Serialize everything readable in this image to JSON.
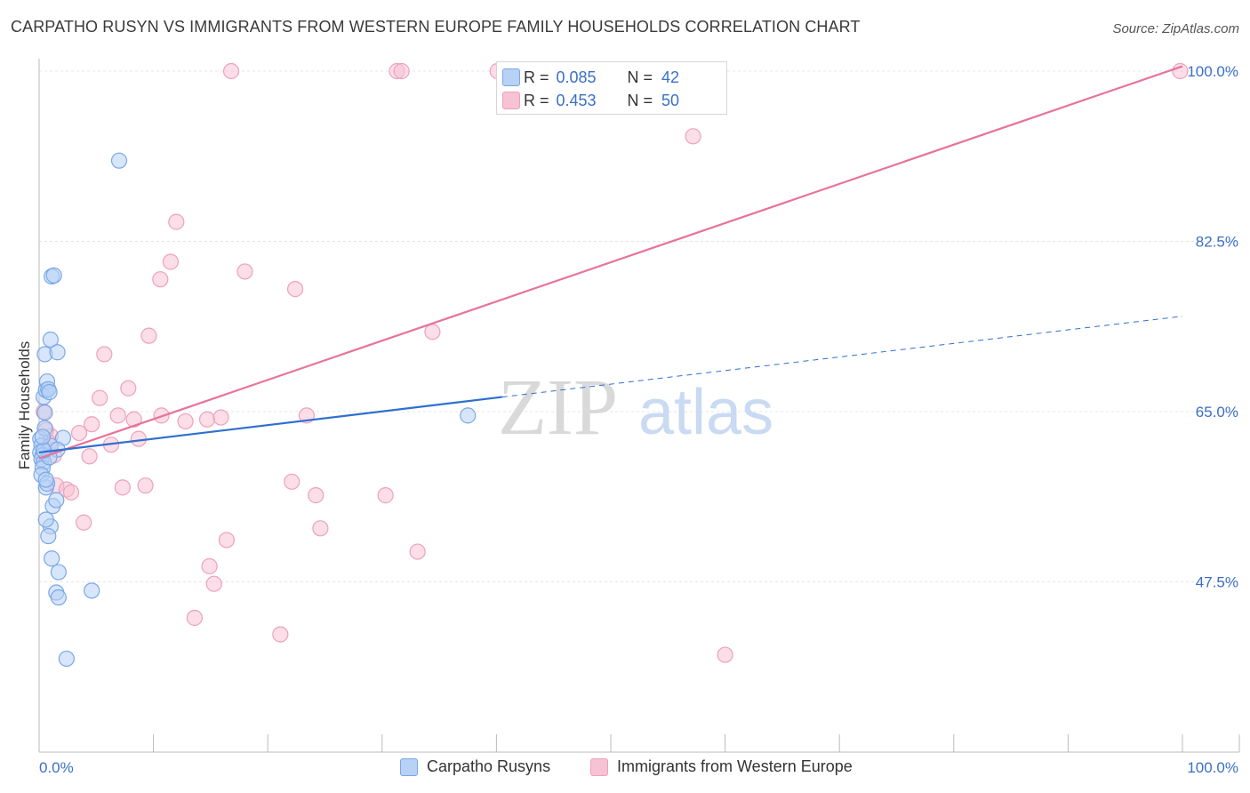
{
  "title": "CARPATHO RUSYN VS IMMIGRANTS FROM WESTERN EUROPE FAMILY HOUSEHOLDS CORRELATION CHART",
  "source": "Source: ZipAtlas.com",
  "colors": {
    "blue": "#4f8fe8",
    "blue_fill": "#b7d2f5",
    "pink": "#e8729a",
    "pink_fill": "#f7c2d3",
    "axis_text": "#3b6fc7"
  },
  "legend_top": {
    "rows": [
      {
        "r_label": "R =",
        "r_value": "0.085",
        "n_label": "N =",
        "n_value": "42"
      },
      {
        "r_label": "R =",
        "r_value": "0.453",
        "n_label": "N =",
        "n_value": "50"
      }
    ]
  },
  "legend_bottom": {
    "items": [
      "Carpatho Rusyns",
      "Immigrants from Western Europe"
    ]
  },
  "watermark": {
    "zip": "ZIP",
    "atlas": "atlas"
  },
  "chart_data": {
    "type": "scatter",
    "title": "CARPATHO RUSYN VS IMMIGRANTS FROM WESTERN EUROPE FAMILY HOUSEHOLDS CORRELATION CHART",
    "xlabel": "",
    "ylabel": "Family Households",
    "xlim": [
      0,
      100
    ],
    "ylim": [
      30,
      102
    ],
    "x_tick_labels": [
      "0.0%",
      "100.0%"
    ],
    "y_ticks": [
      47.5,
      65.0,
      82.5,
      100.0
    ],
    "y_tick_labels": [
      "47.5%",
      "65.0%",
      "82.5%",
      "100.0%"
    ],
    "series": [
      {
        "name": "Carpatho Rusyns",
        "r": 0.085,
        "n": 42,
        "trend": {
          "x0": 0,
          "y0": 60.8,
          "x1": 40.5,
          "y1": 66.5,
          "dash_x1": 100,
          "dash_y1": 74.8
        },
        "points": [
          [
            0.1,
            62.2
          ],
          [
            0.2,
            61.5
          ],
          [
            0.1,
            60.8
          ],
          [
            0.3,
            60.5
          ],
          [
            0.2,
            60.1
          ],
          [
            0.4,
            59.8
          ],
          [
            0.3,
            59.2
          ],
          [
            0.2,
            58.5
          ],
          [
            0.5,
            63.3
          ],
          [
            0.4,
            66.5
          ],
          [
            0.6,
            67.2
          ],
          [
            0.7,
            68.1
          ],
          [
            0.8,
            67.3
          ],
          [
            0.9,
            67.0
          ],
          [
            0.5,
            70.9
          ],
          [
            1.0,
            72.4
          ],
          [
            1.6,
            71.1
          ],
          [
            1.1,
            78.9
          ],
          [
            1.3,
            79.0
          ],
          [
            7.0,
            90.8
          ],
          [
            0.6,
            57.2
          ],
          [
            0.7,
            57.6
          ],
          [
            1.0,
            53.2
          ],
          [
            0.6,
            53.9
          ],
          [
            0.8,
            52.2
          ],
          [
            1.2,
            55.3
          ],
          [
            1.5,
            55.9
          ],
          [
            1.1,
            49.9
          ],
          [
            1.7,
            48.5
          ],
          [
            1.5,
            46.4
          ],
          [
            1.7,
            45.9
          ],
          [
            4.6,
            46.6
          ],
          [
            2.4,
            39.6
          ],
          [
            2.1,
            62.3
          ],
          [
            1.0,
            61.5
          ],
          [
            1.6,
            61.1
          ],
          [
            0.9,
            60.3
          ],
          [
            0.4,
            61.0
          ],
          [
            0.3,
            62.4
          ],
          [
            0.5,
            64.9
          ],
          [
            0.6,
            58.0
          ],
          [
            37.5,
            64.6
          ]
        ]
      },
      {
        "name": "Immigrants from Western Europe",
        "r": 0.453,
        "n": 50,
        "trend": {
          "x0": 0,
          "y0": 60.2,
          "x1": 100,
          "y1": 100.5
        },
        "points": [
          [
            16.8,
            100.0
          ],
          [
            31.3,
            100.0
          ],
          [
            31.7,
            100.0
          ],
          [
            40.1,
            100.0
          ],
          [
            99.8,
            100.0
          ],
          [
            57.2,
            93.3
          ],
          [
            12.0,
            84.5
          ],
          [
            11.5,
            80.4
          ],
          [
            10.6,
            78.6
          ],
          [
            18.0,
            79.4
          ],
          [
            22.4,
            77.6
          ],
          [
            9.6,
            72.8
          ],
          [
            34.4,
            73.2
          ],
          [
            5.7,
            70.9
          ],
          [
            7.8,
            67.4
          ],
          [
            5.3,
            66.4
          ],
          [
            4.6,
            63.7
          ],
          [
            6.9,
            64.6
          ],
          [
            8.3,
            64.2
          ],
          [
            10.7,
            64.6
          ],
          [
            12.8,
            64.0
          ],
          [
            14.7,
            64.2
          ],
          [
            15.9,
            64.4
          ],
          [
            23.4,
            64.6
          ],
          [
            3.5,
            62.8
          ],
          [
            8.7,
            62.2
          ],
          [
            6.3,
            61.6
          ],
          [
            4.4,
            60.4
          ],
          [
            1.3,
            60.5
          ],
          [
            1.0,
            62.5
          ],
          [
            1.5,
            57.4
          ],
          [
            2.4,
            57.0
          ],
          [
            2.8,
            56.7
          ],
          [
            7.3,
            57.2
          ],
          [
            9.3,
            57.4
          ],
          [
            22.1,
            57.8
          ],
          [
            24.2,
            56.4
          ],
          [
            30.3,
            56.4
          ],
          [
            3.9,
            53.6
          ],
          [
            24.6,
            53.0
          ],
          [
            16.4,
            51.8
          ],
          [
            33.1,
            50.6
          ],
          [
            14.9,
            49.1
          ],
          [
            15.3,
            47.3
          ],
          [
            13.6,
            43.8
          ],
          [
            21.1,
            42.1
          ],
          [
            60.0,
            40.0
          ],
          [
            0.4,
            65.0
          ],
          [
            0.6,
            63.1
          ],
          [
            0.9,
            61.8
          ]
        ]
      }
    ]
  }
}
